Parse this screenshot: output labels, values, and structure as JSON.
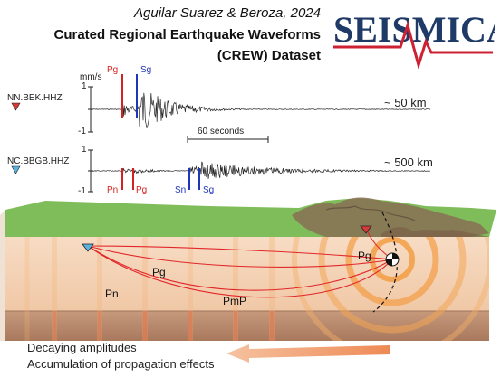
{
  "header": {
    "citation": "Aguilar Suarez & Beroza, 2024",
    "title_line1": "Curated Regional Earthquake Waveforms",
    "title_line2": "(CREW) Dataset"
  },
  "logo": {
    "text": "SEISMICA",
    "color": "#1f3a66",
    "accent": "#cc2233"
  },
  "traces": [
    {
      "station": "NN.BEK.HHZ",
      "distance": "~ 50 km",
      "units": "mm/s",
      "ticks": [
        "1",
        "-1"
      ],
      "phases": [
        {
          "label": "Pg",
          "color": "red"
        },
        {
          "label": "Sg",
          "color": "blue"
        }
      ]
    },
    {
      "station": "NC.BBGB.HHZ",
      "distance": "~ 500 km",
      "ticks": [
        "1",
        "-1"
      ],
      "phases": [
        {
          "label": "Pn",
          "color": "red"
        },
        {
          "label": "Pg",
          "color": "red"
        },
        {
          "label": "Sn",
          "color": "blue"
        },
        {
          "label": "Sg",
          "color": "blue"
        }
      ]
    }
  ],
  "scale_bar": "60 seconds",
  "block": {
    "ray_labels": [
      "Pg",
      "Pn",
      "PmP",
      "Pg"
    ]
  },
  "caption": {
    "line1": "Decaying amplitudes",
    "line2": "Accumulation of propagation effects"
  },
  "colors": {
    "red_phase": "#d32222",
    "blue_phase": "#1f36b8",
    "crust": "#f4d3b8",
    "mantle": "#b98d72",
    "surface": "#7fbd5a",
    "arrow": "#f0a070"
  }
}
